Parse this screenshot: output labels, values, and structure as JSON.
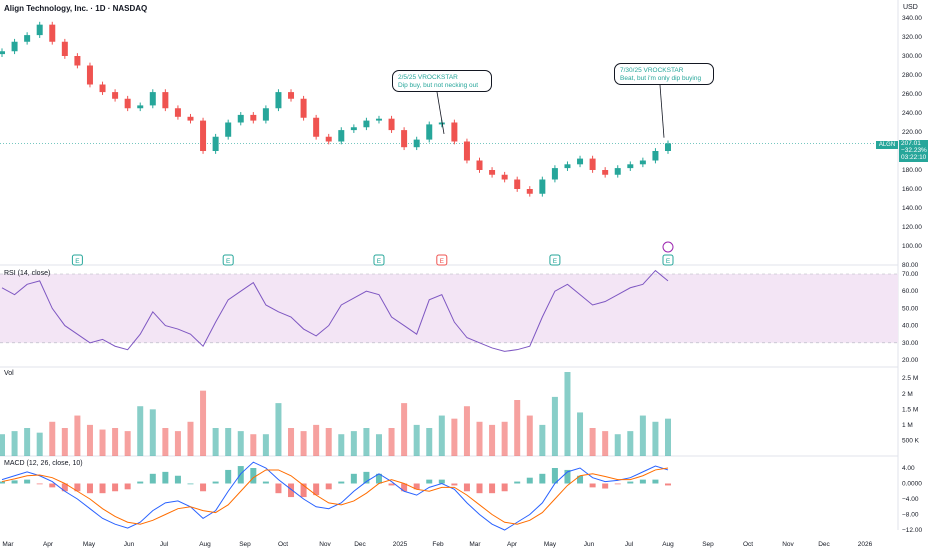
{
  "title": "Align Technology, Inc. · 1D · NASDAQ",
  "currency": "USD",
  "panels": {
    "rsi_label": "RSI (14, close)",
    "vol_label": "Vol",
    "macd_label": "MACD (12, 26, close, 10)"
  },
  "price_tag": {
    "symbol": "ALGN",
    "price": "207.01",
    "change": "−32.23%",
    "time": "03:22:10"
  },
  "annotations": [
    {
      "date_line": "2/5/25 VROCKSTAR",
      "text": "Dip buy, but not necking out"
    },
    {
      "date_line": "7/30/25 VROCKSTAR",
      "text": "Beat, but i'm only dip buying"
    }
  ],
  "earnings_markers": [
    "E",
    "E",
    "E",
    "E",
    "E",
    "E"
  ],
  "colors": {
    "up": "#26a69a",
    "down": "#ef5350",
    "rsi": "#7e57c2",
    "rsi_band": "#f3e5f5",
    "macd": "#2962ff",
    "signal": "#ff6d00"
  },
  "chart_data": [
    {
      "type": "line",
      "name": "price",
      "y_axis_ticks": [
        "340.00",
        "320.00",
        "300.00",
        "280.00",
        "260.00",
        "240.00",
        "220.00",
        "200.00",
        "180.00",
        "160.00",
        "140.00",
        "120.00",
        "100.00",
        "80.00"
      ],
      "ylim": [
        80,
        345
      ],
      "x_ticks": [
        "Mar",
        "Apr",
        "May",
        "Jun",
        "Jul",
        "Aug",
        "Sep",
        "Oct",
        "Nov",
        "Dec",
        "2025",
        "Feb",
        "Mar",
        "Apr",
        "May",
        "Jun",
        "Jul",
        "Aug",
        "Sep",
        "Oct",
        "Nov",
        "Dec",
        "2026"
      ],
      "x": [
        "2024-02-28",
        "2024-03-10",
        "2024-03-22",
        "2024-04-01",
        "2024-04-10",
        "2024-04-22",
        "2024-05-01",
        "2024-05-10",
        "2024-05-20",
        "2024-06-01",
        "2024-06-10",
        "2024-06-20",
        "2024-07-01",
        "2024-07-10",
        "2024-07-20",
        "2024-08-01",
        "2024-08-06",
        "2024-08-15",
        "2024-08-25",
        "2024-09-01",
        "2024-09-10",
        "2024-09-20",
        "2024-10-01",
        "2024-10-10",
        "2024-10-22",
        "2024-11-01",
        "2024-11-10",
        "2024-11-20",
        "2024-12-01",
        "2024-12-10",
        "2024-12-20",
        "2025-01-01",
        "2025-01-10",
        "2025-01-20",
        "2025-02-01",
        "2025-02-05",
        "2025-02-15",
        "2025-02-25",
        "2025-03-05",
        "2025-03-15",
        "2025-03-25",
        "2025-04-01",
        "2025-04-10",
        "2025-04-20",
        "2025-05-01",
        "2025-05-10",
        "2025-05-20",
        "2025-06-01",
        "2025-06-10",
        "2025-06-20",
        "2025-07-01",
        "2025-07-10",
        "2025-07-20",
        "2025-07-30"
      ],
      "close": [
        305,
        315,
        322,
        333,
        315,
        300,
        290,
        270,
        262,
        255,
        245,
        248,
        262,
        245,
        236,
        232,
        200,
        215,
        230,
        238,
        232,
        245,
        262,
        255,
        235,
        215,
        210,
        222,
        225,
        232,
        234,
        222,
        204,
        212,
        228,
        230,
        210,
        190,
        180,
        175,
        170,
        160,
        155,
        170,
        182,
        186,
        192,
        180,
        175,
        182,
        186,
        190,
        200,
        208
      ],
      "annotations": [
        "2/5/25 VROCKSTAR Dip buy, but not necking out",
        "7/30/25 VROCKSTAR Beat, but i'm only dip buying"
      ]
    },
    {
      "type": "line",
      "name": "RSI (14, close)",
      "y_axis_ticks": [
        "70.00",
        "60.00",
        "50.00",
        "40.00",
        "30.00",
        "20.00"
      ],
      "ylim": [
        18,
        75
      ],
      "values": [
        62,
        58,
        64,
        66,
        50,
        40,
        35,
        30,
        32,
        28,
        26,
        35,
        48,
        40,
        38,
        35,
        28,
        42,
        55,
        60,
        65,
        52,
        48,
        45,
        38,
        34,
        40,
        52,
        56,
        60,
        58,
        45,
        40,
        35,
        55,
        58,
        42,
        33,
        30,
        27,
        25,
        26,
        28,
        45,
        60,
        64,
        58,
        52,
        54,
        58,
        62,
        64,
        72,
        66
      ]
    },
    {
      "type": "bar",
      "name": "Vol",
      "y_axis_ticks": [
        "2.5 M",
        "2 M",
        "1.5 M",
        "1 M",
        "500 K"
      ],
      "ylim": [
        0,
        2700000
      ],
      "values": [
        700000,
        800000,
        900000,
        750000,
        1100000,
        900000,
        1300000,
        1000000,
        850000,
        900000,
        800000,
        1600000,
        1500000,
        900000,
        800000,
        1100000,
        2100000,
        900000,
        900000,
        800000,
        700000,
        700000,
        1700000,
        900000,
        800000,
        1000000,
        900000,
        700000,
        800000,
        900000,
        700000,
        900000,
        1700000,
        1000000,
        900000,
        1300000,
        1200000,
        1600000,
        1100000,
        1000000,
        1100000,
        1800000,
        1300000,
        1000000,
        1900000,
        2700000,
        1400000,
        900000,
        800000,
        700000,
        800000,
        1300000,
        1100000,
        1200000
      ]
    },
    {
      "type": "line",
      "name": "MACD (12, 26, close, 10)",
      "y_axis_ticks": [
        "4.00",
        "0.0000",
        "−4.00",
        "−8.00",
        "−12.00"
      ],
      "ylim": [
        -13,
        5.5
      ],
      "macd": [
        1.0,
        2.0,
        3.0,
        2.0,
        0.5,
        -2.0,
        -4.0,
        -6.5,
        -9.0,
        -10.5,
        -11.5,
        -10.0,
        -7.0,
        -5.0,
        -4.5,
        -6.0,
        -9.0,
        -7.0,
        -2.0,
        2.5,
        5.5,
        4.0,
        1.0,
        -1.5,
        -4.0,
        -6.0,
        -6.5,
        -5.0,
        -2.0,
        0.5,
        2.5,
        0.5,
        -2.0,
        -3.0,
        -1.0,
        0.0,
        -1.5,
        -5.0,
        -8.0,
        -10.5,
        -12.0,
        -10.0,
        -8.0,
        -5.0,
        0.0,
        3.0,
        4.0,
        1.5,
        0.5,
        0.8,
        1.5,
        3.0,
        4.5,
        3.5
      ],
      "signal": [
        0.5,
        1.2,
        2.0,
        2.2,
        1.5,
        0.0,
        -2.0,
        -4.0,
        -6.5,
        -8.5,
        -10.0,
        -10.5,
        -9.5,
        -8.0,
        -6.5,
        -6.0,
        -7.0,
        -7.5,
        -5.5,
        -2.0,
        1.5,
        3.5,
        3.5,
        2.0,
        -0.5,
        -3.0,
        -5.0,
        -5.5,
        -4.5,
        -2.5,
        0.0,
        1.0,
        0.0,
        -1.5,
        -2.0,
        -1.0,
        -1.0,
        -3.0,
        -5.5,
        -8.0,
        -10.0,
        -10.5,
        -9.5,
        -7.5,
        -4.0,
        -0.5,
        2.0,
        2.5,
        1.8,
        1.0,
        1.0,
        2.0,
        3.5,
        4.0
      ],
      "histogram": [
        0.5,
        0.8,
        1.0,
        -0.2,
        -1.0,
        -2.0,
        -2.0,
        -2.5,
        -2.5,
        -2.0,
        -1.5,
        0.5,
        2.5,
        3.0,
        2.0,
        0.0,
        -2.0,
        0.5,
        3.5,
        4.5,
        4.0,
        0.5,
        -2.5,
        -3.5,
        -3.5,
        -3.0,
        -1.5,
        0.5,
        2.5,
        3.0,
        2.5,
        -0.5,
        -2.0,
        -1.5,
        1.0,
        1.0,
        -0.5,
        -2.0,
        -2.5,
        -2.5,
        -2.0,
        0.5,
        1.5,
        2.5,
        4.0,
        3.5,
        2.0,
        -1.0,
        -1.3,
        -0.2,
        0.5,
        1.0,
        1.0,
        -0.5
      ]
    }
  ]
}
